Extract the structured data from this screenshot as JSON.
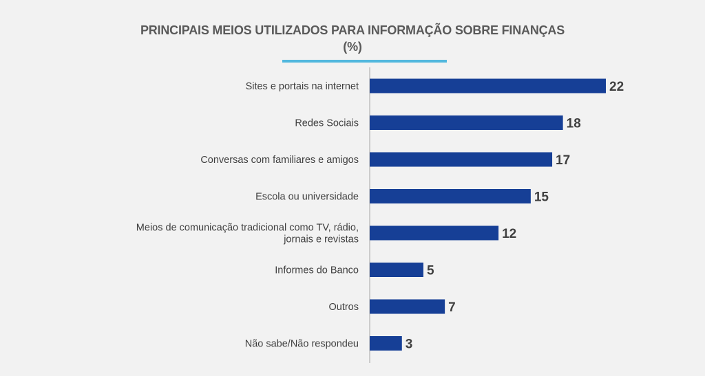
{
  "chart_data": {
    "type": "bar",
    "orientation": "horizontal",
    "title": "PRINCIPAIS MEIOS UTILIZADOS PARA INFORMAÇÃO SOBRE FINANÇAS",
    "subtitle": "(%)",
    "categories": [
      [
        "Sites e portais na internet"
      ],
      [
        "Redes Sociais"
      ],
      [
        "Conversas com familiares e amigos"
      ],
      [
        "Escola ou universidade"
      ],
      [
        "Meios de comunicação tradicional como TV, rádio,",
        "jornais e revistas"
      ],
      [
        "Informes do Banco"
      ],
      [
        "Outros"
      ],
      [
        "Não sabe/Não respondeu"
      ]
    ],
    "values": [
      22,
      18,
      17,
      15,
      12,
      5,
      7,
      3
    ],
    "xlim": [
      0,
      22
    ],
    "grid": false,
    "bar_color": "#163f96",
    "axis_color": "#a6a6a6",
    "accent_line_color": "#52b8de"
  }
}
